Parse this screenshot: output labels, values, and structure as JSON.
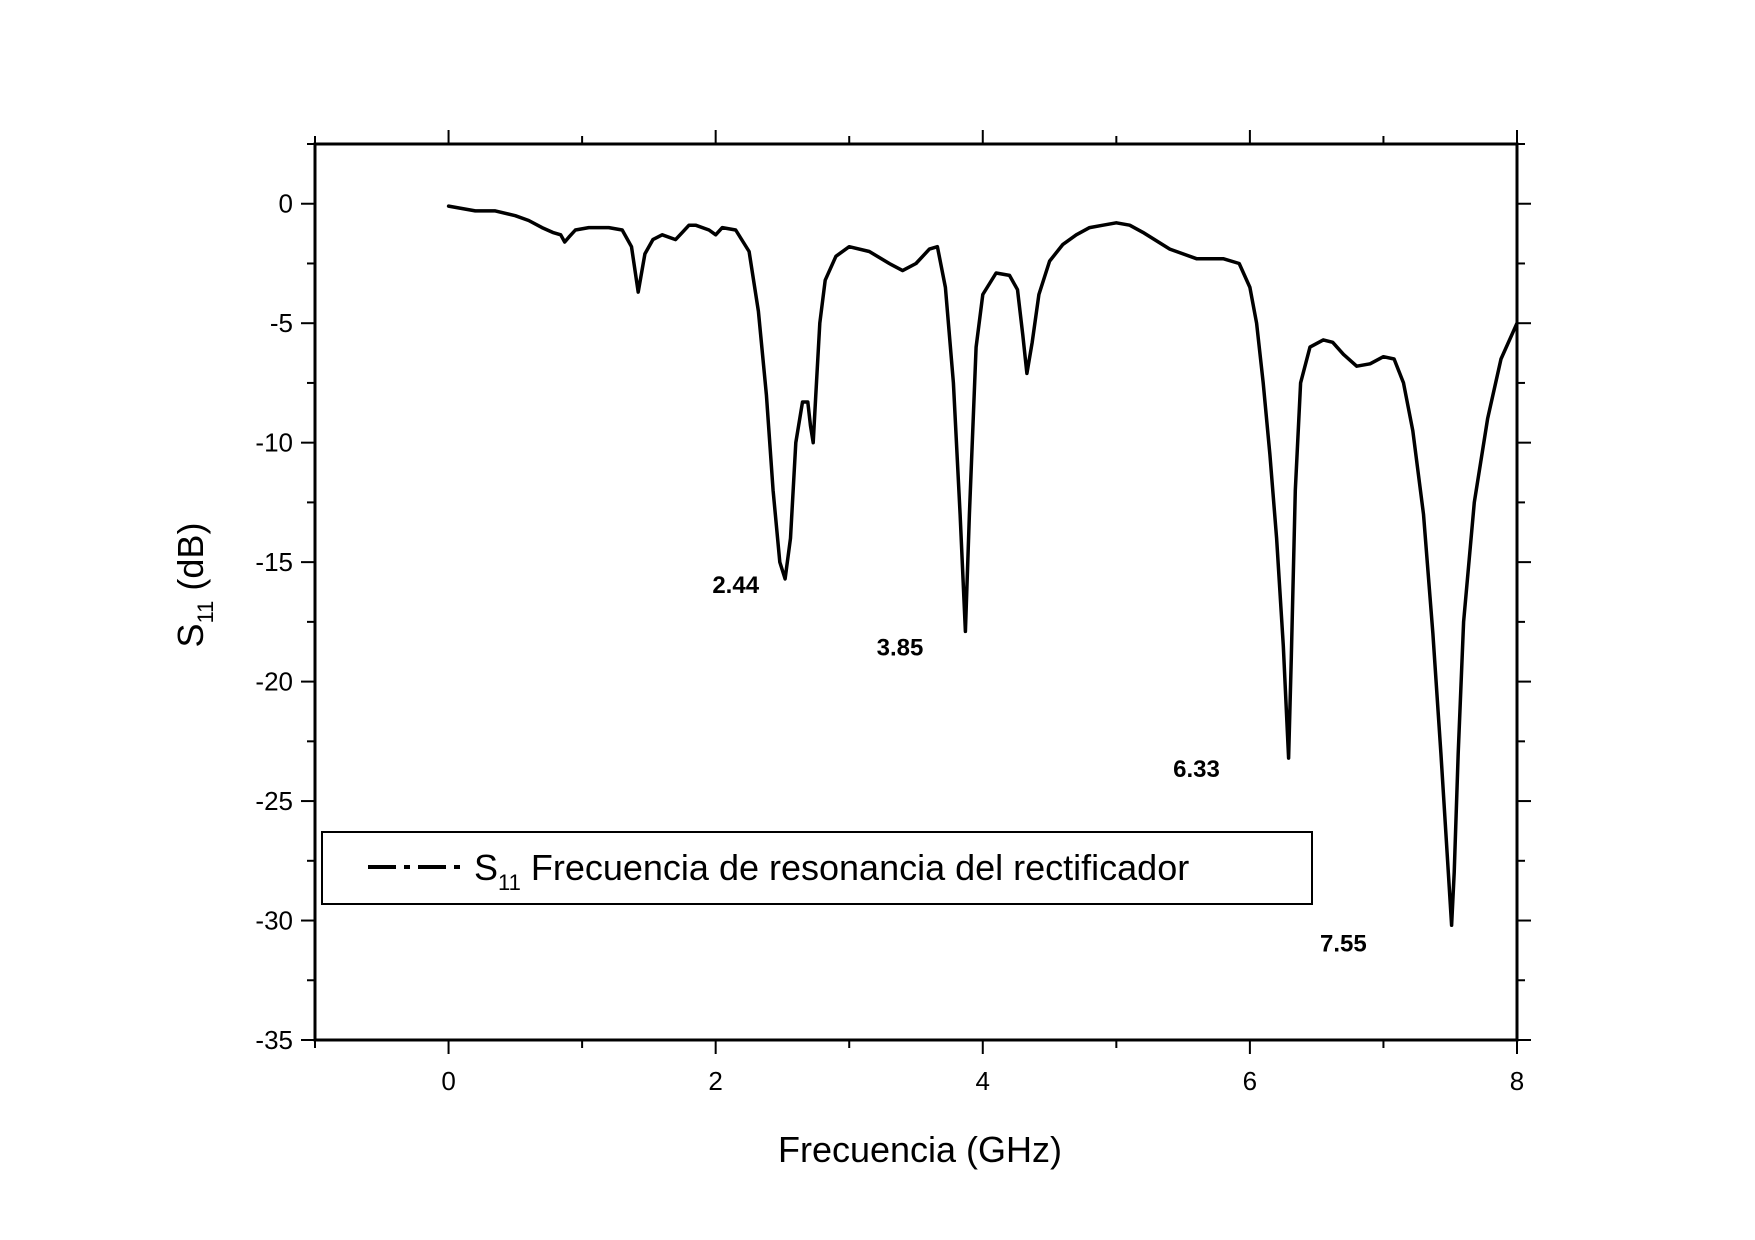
{
  "chart_data": {
    "type": "line",
    "xlabel": "Frecuencia (GHz)",
    "ylabel_main": "S",
    "ylabel_sub": "11",
    "ylabel_unit": " (dB)",
    "xlim": [
      -1,
      8
    ],
    "ylim": [
      -35,
      2.5
    ],
    "xticks": [
      0,
      2,
      4,
      6,
      8
    ],
    "yticks": [
      0,
      -5,
      -10,
      -15,
      -20,
      -25,
      -30,
      -35
    ],
    "grid": false,
    "legend": {
      "placement": "lower-left",
      "main": "S",
      "sub": "11",
      "text": " Frecuencia de resonancia del rectificador"
    },
    "annotations": [
      {
        "text": "2.44",
        "x": 2.15,
        "y": -16.3
      },
      {
        "text": "3.85",
        "x": 3.38,
        "y": -18.9
      },
      {
        "text": "6.33",
        "x": 5.6,
        "y": -24.0
      },
      {
        "text": "7.55",
        "x": 6.7,
        "y": -31.3
      }
    ],
    "series": [
      {
        "color": "#000000",
        "x": [
          0.0,
          0.1,
          0.2,
          0.35,
          0.5,
          0.6,
          0.7,
          0.78,
          0.84,
          0.87,
          0.9,
          0.95,
          1.05,
          1.2,
          1.3,
          1.37,
          1.42,
          1.47,
          1.53,
          1.6,
          1.7,
          1.75,
          1.8,
          1.85,
          1.95,
          2.0,
          2.05,
          2.15,
          2.25,
          2.32,
          2.38,
          2.43,
          2.48,
          2.52,
          2.56,
          2.6,
          2.65,
          2.69,
          2.71,
          2.73,
          2.75,
          2.78,
          2.82,
          2.9,
          3.0,
          3.15,
          3.3,
          3.4,
          3.5,
          3.6,
          3.66,
          3.72,
          3.78,
          3.83,
          3.87,
          3.9,
          3.95,
          4.0,
          4.1,
          4.2,
          4.26,
          4.3,
          4.33,
          4.37,
          4.42,
          4.5,
          4.6,
          4.7,
          4.8,
          4.9,
          5.0,
          5.1,
          5.2,
          5.4,
          5.6,
          5.8,
          5.92,
          6.0,
          6.05,
          6.1,
          6.15,
          6.2,
          6.25,
          6.29,
          6.31,
          6.34,
          6.38,
          6.45,
          6.55,
          6.62,
          6.7,
          6.8,
          6.9,
          7.0,
          7.08,
          7.15,
          7.22,
          7.3,
          7.37,
          7.43,
          7.48,
          7.51,
          7.53,
          7.56,
          7.6,
          7.68,
          7.78,
          7.88,
          8.0
        ],
        "y": [
          -0.1,
          -0.2,
          -0.3,
          -0.3,
          -0.5,
          -0.7,
          -1.0,
          -1.2,
          -1.3,
          -1.6,
          -1.4,
          -1.1,
          -1.0,
          -1.0,
          -1.1,
          -1.8,
          -3.7,
          -2.1,
          -1.5,
          -1.3,
          -1.5,
          -1.2,
          -0.9,
          -0.9,
          -1.1,
          -1.3,
          -1.0,
          -1.1,
          -2.0,
          -4.5,
          -8.0,
          -12.0,
          -15.0,
          -15.7,
          -14.0,
          -10.0,
          -8.3,
          -8.3,
          -9.3,
          -10.0,
          -8.0,
          -5.0,
          -3.2,
          -2.2,
          -1.8,
          -2.0,
          -2.5,
          -2.8,
          -2.5,
          -1.9,
          -1.8,
          -3.5,
          -7.5,
          -13.0,
          -17.9,
          -13.0,
          -6.0,
          -3.8,
          -2.9,
          -3.0,
          -3.6,
          -5.5,
          -7.1,
          -5.8,
          -3.8,
          -2.4,
          -1.7,
          -1.3,
          -1.0,
          -0.9,
          -0.8,
          -0.9,
          -1.2,
          -1.9,
          -2.3,
          -2.3,
          -2.5,
          -3.5,
          -5.0,
          -7.5,
          -10.5,
          -14.0,
          -18.5,
          -23.2,
          -19.0,
          -12.0,
          -7.5,
          -6.0,
          -5.7,
          -5.8,
          -6.3,
          -6.8,
          -6.7,
          -6.4,
          -6.5,
          -7.5,
          -9.5,
          -13.0,
          -18.0,
          -23.0,
          -27.5,
          -30.2,
          -28.0,
          -23.0,
          -17.5,
          -12.5,
          -9.0,
          -6.5,
          -5.0
        ]
      }
    ]
  }
}
